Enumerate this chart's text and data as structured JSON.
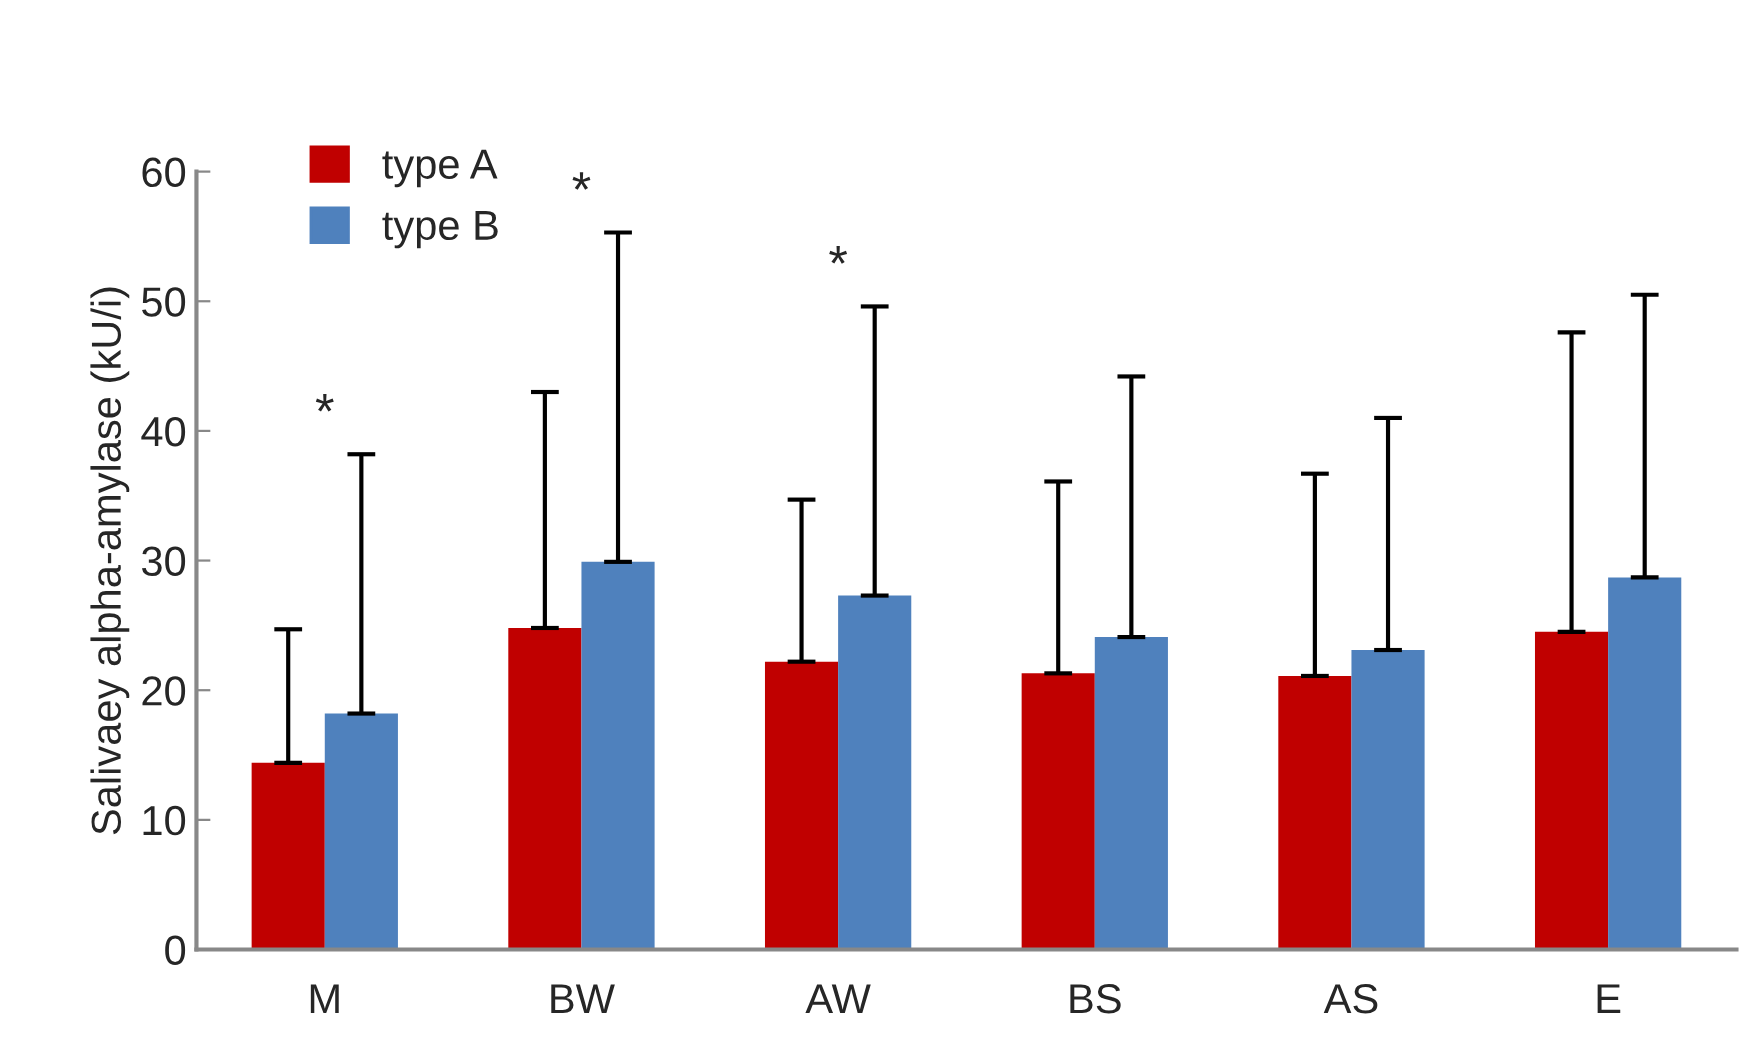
{
  "chart_data": {
    "type": "bar",
    "ylabel": "Salivaey alpha-amylase (kU/i)",
    "categories": [
      "M",
      "BW",
      "AW",
      "BS",
      "AS",
      "E"
    ],
    "series": [
      {
        "name": "type A",
        "color": "#c00000",
        "values": [
          14.4,
          24.8,
          22.2,
          21.3,
          21.1,
          24.5
        ],
        "errors": [
          [
            14.4,
            24.7
          ],
          [
            24.8,
            43.0
          ],
          [
            22.2,
            34.7
          ],
          [
            21.3,
            36.1
          ],
          [
            21.1,
            36.7
          ],
          [
            24.5,
            47.6
          ]
        ]
      },
      {
        "name": "type B",
        "color": "#4f81bd",
        "values": [
          18.2,
          29.9,
          27.3,
          24.1,
          23.1,
          28.7
        ],
        "errors": [
          [
            18.2,
            38.2
          ],
          [
            29.9,
            55.3
          ],
          [
            27.3,
            49.6
          ],
          [
            24.1,
            44.2
          ],
          [
            23.1,
            41.0
          ],
          [
            28.7,
            50.5
          ]
        ]
      }
    ],
    "ylim": [
      0,
      60
    ],
    "yticks": [
      0,
      10,
      20,
      30,
      40,
      50,
      60
    ],
    "annotations": [
      "*",
      "*",
      "*"
    ],
    "grid": false,
    "legend": "top left"
  }
}
